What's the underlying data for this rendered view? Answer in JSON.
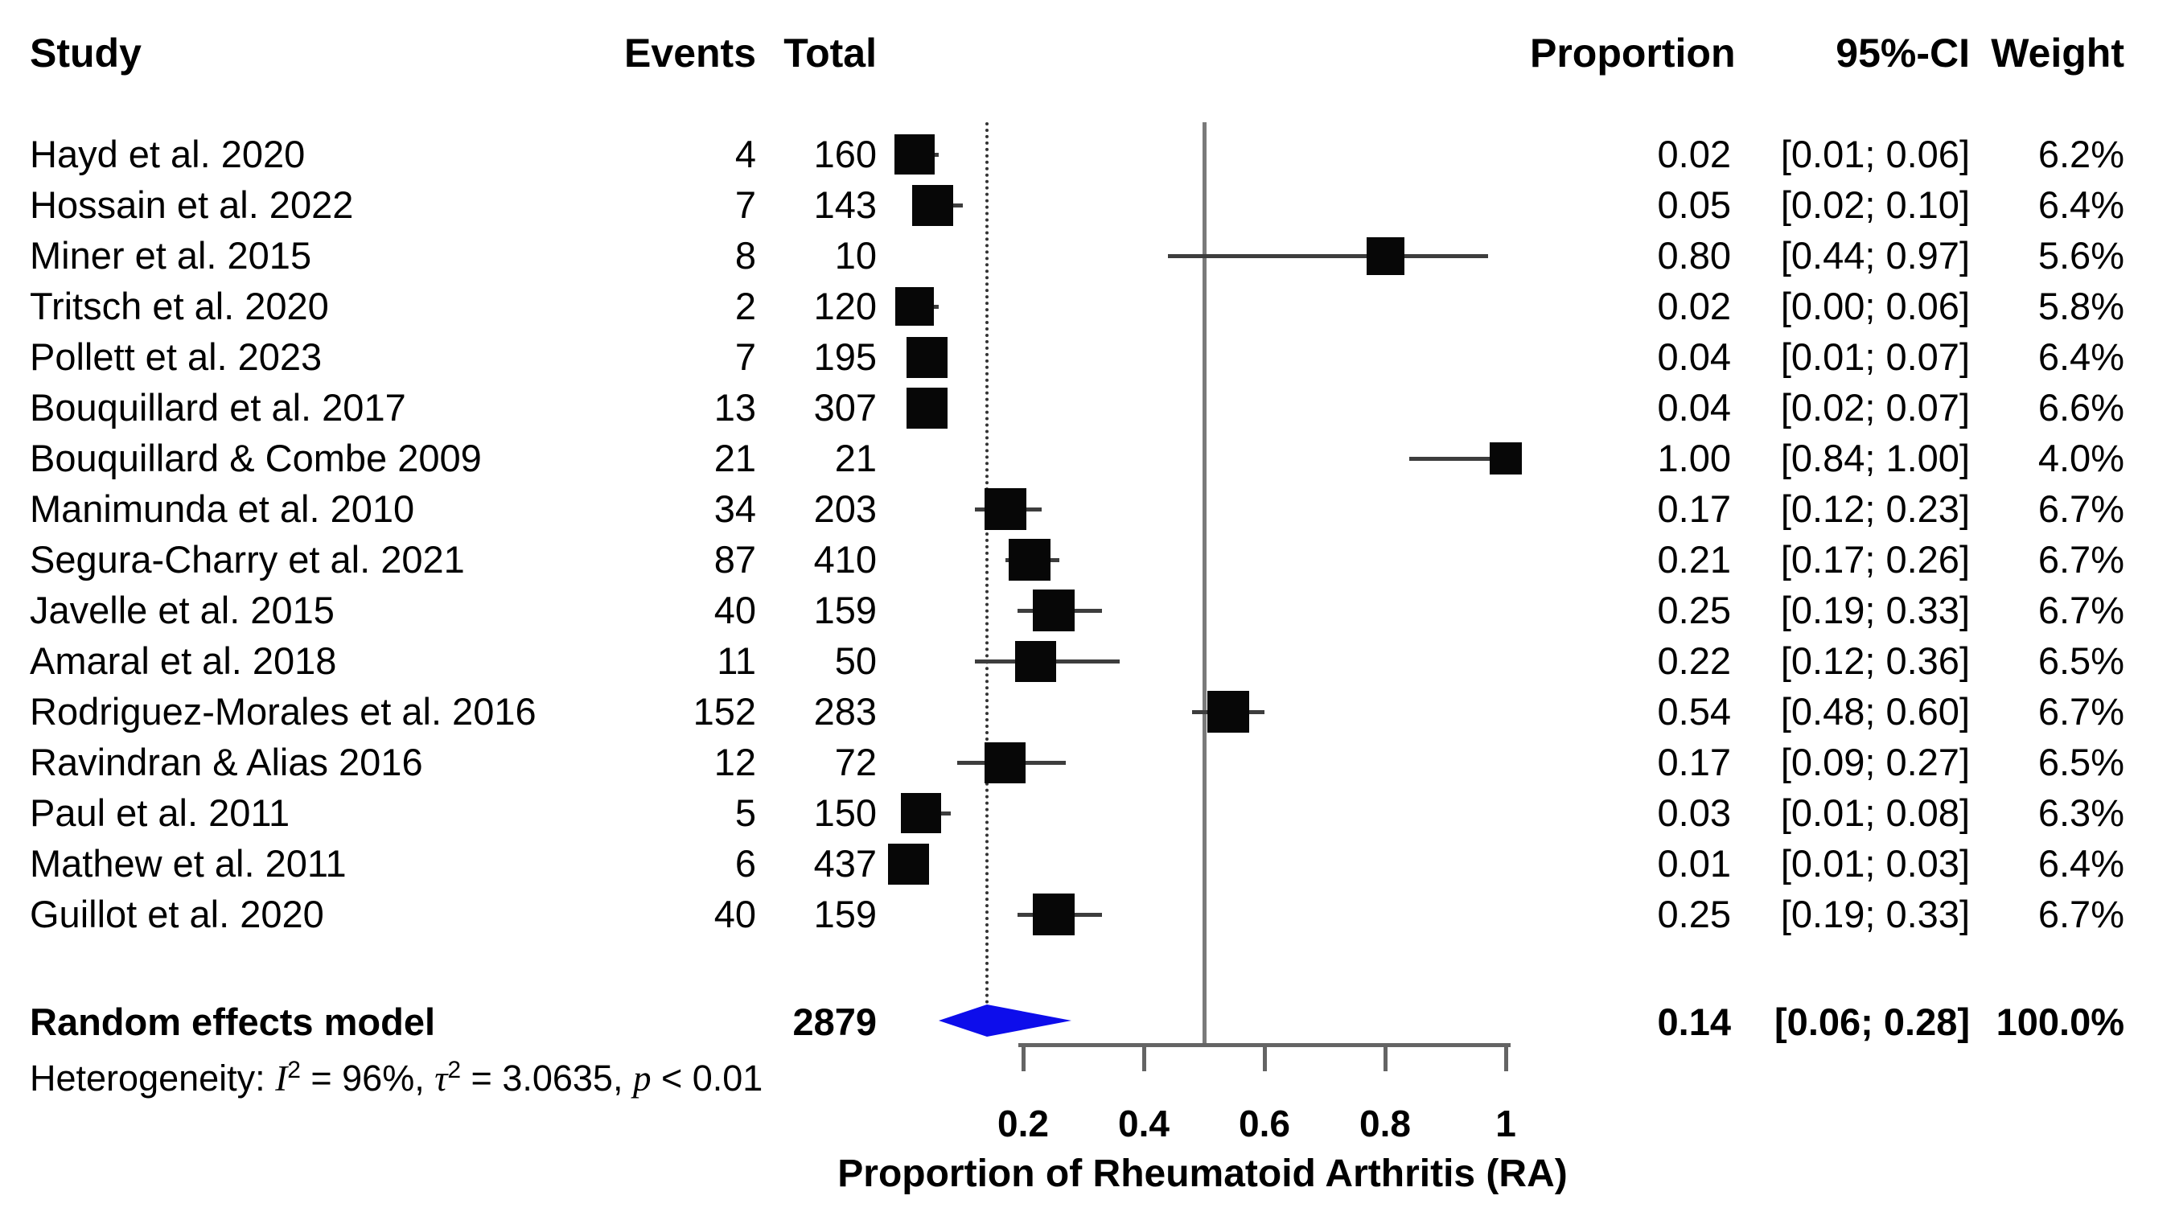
{
  "colors": {
    "text": "#000000",
    "square": "#070707",
    "ci_line": "#3d3d3d",
    "axis": "#646464",
    "reference_line": "#7a7a7a",
    "dotted_line": "#333333",
    "diamond": "#0d0deb"
  },
  "chart_data": {
    "type": "forest",
    "title": "",
    "xlabel": "Proportion of Rheumatoid Arthritis (RA)",
    "xlim": [
      0,
      1.05
    ],
    "xticks": [
      {
        "label": "0.2",
        "value": 0.2
      },
      {
        "label": "0.4",
        "value": 0.4
      },
      {
        "label": "0.6",
        "value": 0.6
      },
      {
        "label": "0.8",
        "value": 0.8
      },
      {
        "label": "1",
        "value": 1.0
      }
    ],
    "reference_line": 0.5,
    "pooled_estimate_line": 0.14,
    "columns": {
      "study": "Study",
      "events": "Events",
      "total": "Total",
      "proportion": "Proportion",
      "ci": "95%-CI",
      "weight": "Weight"
    },
    "studies": [
      {
        "study": "Hayd et al. 2020",
        "events": "4",
        "total": "160",
        "proportion": "0.02",
        "ci_text": "[0.01; 0.06]",
        "weight_text": "6.2%",
        "p": 0.02,
        "lo": 0.01,
        "hi": 0.06,
        "weight_pct": 6.2
      },
      {
        "study": "Hossain et al. 2022",
        "events": "7",
        "total": "143",
        "proportion": "0.05",
        "ci_text": "[0.02; 0.10]",
        "weight_text": "6.4%",
        "p": 0.05,
        "lo": 0.02,
        "hi": 0.1,
        "weight_pct": 6.4
      },
      {
        "study": "Miner et al. 2015",
        "events": "8",
        "total": "10",
        "proportion": "0.80",
        "ci_text": "[0.44; 0.97]",
        "weight_text": "5.6%",
        "p": 0.8,
        "lo": 0.44,
        "hi": 0.97,
        "weight_pct": 5.6
      },
      {
        "study": "Tritsch et al. 2020",
        "events": "2",
        "total": "120",
        "proportion": "0.02",
        "ci_text": "[0.00; 0.06]",
        "weight_text": "5.8%",
        "p": 0.02,
        "lo": 0.0,
        "hi": 0.06,
        "weight_pct": 5.8
      },
      {
        "study": "Pollett et al. 2023",
        "events": "7",
        "total": "195",
        "proportion": "0.04",
        "ci_text": "[0.01; 0.07]",
        "weight_text": "6.4%",
        "p": 0.04,
        "lo": 0.01,
        "hi": 0.07,
        "weight_pct": 6.4
      },
      {
        "study": "Bouquillard et al. 2017",
        "events": "13",
        "total": "307",
        "proportion": "0.04",
        "ci_text": "[0.02; 0.07]",
        "weight_text": "6.6%",
        "p": 0.04,
        "lo": 0.02,
        "hi": 0.07,
        "weight_pct": 6.6
      },
      {
        "study": "Bouquillard & Combe 2009",
        "events": "21",
        "total": "21",
        "proportion": "1.00",
        "ci_text": "[0.84; 1.00]",
        "weight_text": "4.0%",
        "p": 1.0,
        "lo": 0.84,
        "hi": 1.0,
        "weight_pct": 4.0
      },
      {
        "study": "Manimunda et al. 2010",
        "events": "34",
        "total": "203",
        "proportion": "0.17",
        "ci_text": "[0.12; 0.23]",
        "weight_text": "6.7%",
        "p": 0.17,
        "lo": 0.12,
        "hi": 0.23,
        "weight_pct": 6.7
      },
      {
        "study": "Segura-Charry et al. 2021",
        "events": "87",
        "total": "410",
        "proportion": "0.21",
        "ci_text": "[0.17; 0.26]",
        "weight_text": "6.7%",
        "p": 0.21,
        "lo": 0.17,
        "hi": 0.26,
        "weight_pct": 6.7
      },
      {
        "study": "Javelle et al. 2015",
        "events": "40",
        "total": "159",
        "proportion": "0.25",
        "ci_text": "[0.19; 0.33]",
        "weight_text": "6.7%",
        "p": 0.25,
        "lo": 0.19,
        "hi": 0.33,
        "weight_pct": 6.7
      },
      {
        "study": "Amaral et al. 2018",
        "events": "11",
        "total": "50",
        "proportion": "0.22",
        "ci_text": "[0.12; 0.36]",
        "weight_text": "6.5%",
        "p": 0.22,
        "lo": 0.12,
        "hi": 0.36,
        "weight_pct": 6.5
      },
      {
        "study": "Rodriguez-Morales et al. 2016",
        "events": "152",
        "total": "283",
        "proportion": "0.54",
        "ci_text": "[0.48; 0.60]",
        "weight_text": "6.7%",
        "p": 0.54,
        "lo": 0.48,
        "hi": 0.6,
        "weight_pct": 6.7
      },
      {
        "study": "Ravindran & Alias 2016",
        "events": "12",
        "total": "72",
        "proportion": "0.17",
        "ci_text": "[0.09; 0.27]",
        "weight_text": "6.5%",
        "p": 0.17,
        "lo": 0.09,
        "hi": 0.27,
        "weight_pct": 6.5
      },
      {
        "study": "Paul et al. 2011",
        "events": "5",
        "total": "150",
        "proportion": "0.03",
        "ci_text": "[0.01; 0.08]",
        "weight_text": "6.3%",
        "p": 0.03,
        "lo": 0.01,
        "hi": 0.08,
        "weight_pct": 6.3
      },
      {
        "study": "Mathew et al. 2011",
        "events": "6",
        "total": "437",
        "proportion": "0.01",
        "ci_text": "[0.01; 0.03]",
        "weight_text": "6.4%",
        "p": 0.01,
        "lo": 0.01,
        "hi": 0.03,
        "weight_pct": 6.4
      },
      {
        "study": "Guillot et al. 2020",
        "events": "40",
        "total": "159",
        "proportion": "0.25",
        "ci_text": "[0.19; 0.33]",
        "weight_text": "6.7%",
        "p": 0.25,
        "lo": 0.19,
        "hi": 0.33,
        "weight_pct": 6.7
      }
    ],
    "summary": {
      "label": "Random effects model",
      "total": "2879",
      "proportion": "0.14",
      "ci_text": "[0.06; 0.28]",
      "weight_text": "100.0%",
      "p": 0.14,
      "lo": 0.06,
      "hi": 0.28
    },
    "heterogeneity_text": "Heterogeneity: I2 = 96%, t2 = 3.0635, p < 0.01",
    "heterogeneity_segments": [
      {
        "t": "Heterogeneity: "
      },
      {
        "t": "I",
        "i": true
      },
      {
        "t": "2",
        "sup": true
      },
      {
        "t": " = 96%, "
      },
      {
        "t": "τ",
        "i": true
      },
      {
        "t": "2",
        "sup": true
      },
      {
        "t": " = 3.0635, "
      },
      {
        "t": "p",
        "i": true
      },
      {
        "t": " < 0.01"
      }
    ]
  }
}
